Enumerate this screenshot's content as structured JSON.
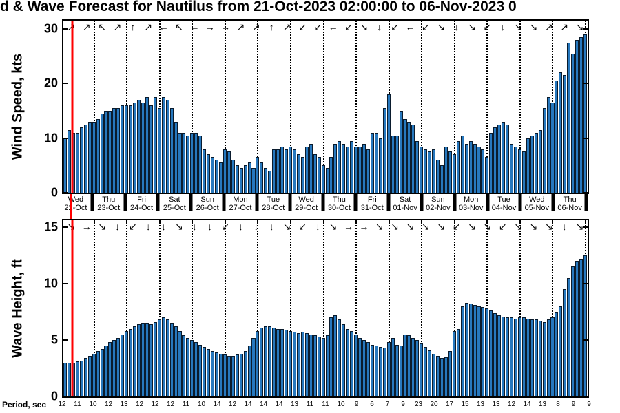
{
  "title": "d & Wave Forecast for Nautilus from 21-Oct-2023 02:00:00 to 06-Nov-2023 0",
  "colors": {
    "bar_fill": "#2778BE",
    "bar_edge": "#0A1C2E",
    "now_line": "#FF0000"
  },
  "x_axis": {
    "total_hours": 384,
    "now_hour": 6.5,
    "day_tick_hours": [
      22,
      46,
      70,
      94,
      118,
      142,
      166,
      190,
      214,
      238,
      262,
      286,
      310,
      334,
      358,
      382
    ],
    "day_labels": [
      {
        "day": "Wed",
        "date": "22-Oct"
      },
      {
        "day": "Thu",
        "date": "23-Oct"
      },
      {
        "day": "Fri",
        "date": "24-Oct"
      },
      {
        "day": "Sat",
        "date": "25-Oct"
      },
      {
        "day": "Sun",
        "date": "26-Oct"
      },
      {
        "day": "Mon",
        "date": "27-Oct"
      },
      {
        "day": "Tue",
        "date": "28-Oct"
      },
      {
        "day": "Wed",
        "date": "29-Oct"
      },
      {
        "day": "Thu",
        "date": "30-Oct"
      },
      {
        "day": "Fri",
        "date": "31-Oct"
      },
      {
        "day": "Sat",
        "date": "01-Nov"
      },
      {
        "day": "Sun",
        "date": "02-Nov"
      },
      {
        "day": "Mon",
        "date": "03-Nov"
      },
      {
        "day": "Tue",
        "date": "04-Nov"
      },
      {
        "day": "Wed",
        "date": "05-Nov"
      },
      {
        "day": "Thu",
        "date": "06-Nov"
      }
    ]
  },
  "chart_data": [
    {
      "type": "bar",
      "name": "wind-speed",
      "ylabel": "Wind Speed, kts",
      "ylim": [
        0,
        31.5
      ],
      "yticks": [
        0,
        10,
        20,
        30
      ],
      "step_hours": 3,
      "values": [
        10,
        11.5,
        11,
        11,
        12,
        12.5,
        13,
        13,
        13.5,
        14.5,
        15,
        15,
        15.5,
        15.5,
        16,
        16,
        16,
        16.5,
        17,
        16.5,
        17.5,
        16,
        17.5,
        15.5,
        17.5,
        17,
        15.5,
        13,
        11,
        11,
        10.5,
        11,
        11,
        10.5,
        8,
        7,
        6.5,
        6,
        5.5,
        8,
        7.5,
        6,
        5,
        4.5,
        5,
        5.5,
        4.5,
        6.5,
        5.5,
        4.5,
        4,
        8,
        8,
        8.5,
        8,
        8.5,
        8,
        7,
        6.5,
        8.5,
        9,
        7,
        6.5,
        5,
        4.5,
        6.5,
        9,
        9.5,
        9,
        8.5,
        9.5,
        8.5,
        8.5,
        9,
        8,
        11,
        11,
        10,
        15.5,
        18,
        10.5,
        10.5,
        15,
        13.5,
        13,
        12.5,
        9.5,
        8.5,
        8,
        7.5,
        8,
        6,
        5,
        8.5,
        7.5,
        7,
        9.5,
        10.5,
        9,
        9.5,
        9,
        8.5,
        8,
        6.5,
        11,
        12,
        12.5,
        13,
        12.5,
        9,
        8.5,
        8,
        7.5,
        10,
        10.5,
        11,
        11.5,
        15.5,
        17.5,
        16.5,
        20.5,
        22,
        21.5,
        27.5,
        25.5,
        28,
        28.5,
        29
      ],
      "arrows": [
        "↗",
        "↗",
        "↖",
        "↗",
        "↑",
        "↗",
        "←",
        "↖",
        "←",
        "→",
        "→",
        "↗",
        "↗",
        "↑",
        "↗",
        "↙",
        "↙",
        "←",
        "↙",
        "↘",
        "↓",
        "↙",
        "←",
        "↙",
        "↘",
        "↓",
        "↘",
        "↙",
        "↓",
        "↘",
        "↘",
        "↗",
        "↗",
        "↘"
      ]
    },
    {
      "type": "bar",
      "name": "wave-height",
      "ylabel": "Wave Height, ft",
      "ylim": [
        0,
        15.6
      ],
      "yticks": [
        0,
        5,
        10,
        15
      ],
      "step_hours": 3,
      "values": [
        3,
        3,
        3,
        3.1,
        3.2,
        3.4,
        3.6,
        3.8,
        4,
        4.2,
        4.5,
        4.8,
        5,
        5.2,
        5.5,
        5.8,
        6,
        6.2,
        6.4,
        6.5,
        6.5,
        6.4,
        6.6,
        6.8,
        7,
        6.8,
        6.5,
        6.2,
        5.8,
        5.4,
        5.2,
        5,
        4.8,
        4.6,
        4.4,
        4.2,
        4,
        3.9,
        3.8,
        3.7,
        3.6,
        3.6,
        3.7,
        3.8,
        4,
        4.5,
        5.2,
        5.8,
        6.1,
        6.2,
        6.2,
        6.1,
        6,
        6,
        5.9,
        5.8,
        5.7,
        5.6,
        5.7,
        5.6,
        5.5,
        5.4,
        5.3,
        5.2,
        5.4,
        7,
        7.2,
        6.8,
        6.4,
        6,
        5.8,
        5.5,
        5.2,
        5,
        4.8,
        4.6,
        4.5,
        4.4,
        4.3,
        4.8,
        5.2,
        4.6,
        4.5,
        5.5,
        5.4,
        5.2,
        5,
        4.7,
        4.4,
        4.1,
        3.8,
        3.6,
        3.4,
        3.5,
        4,
        5.8,
        6,
        8,
        8.3,
        8.2,
        8.1,
        8,
        7.9,
        7.8,
        7.6,
        7.4,
        7.2,
        7.1,
        7,
        7,
        6.9,
        7,
        7,
        6.9,
        6.8,
        6.8,
        6.7,
        6.6,
        6.8,
        7,
        7.5,
        8,
        9.5,
        10.5,
        11.5,
        12,
        12.2,
        12.5
      ],
      "arrows": [
        "↘",
        "→",
        "↘",
        "↓",
        "↙",
        "↓",
        "↓",
        "↘",
        "↓",
        "↓",
        "↙",
        "↓",
        "↓",
        "↓",
        "↘",
        "↙",
        "↓",
        "↘",
        "→",
        "→",
        "↘",
        "↘",
        "↘",
        "↘",
        "↘",
        "↙",
        "↘",
        "↘",
        "↙",
        "↘",
        "↘",
        "↘",
        "↓",
        "↘"
      ]
    }
  ],
  "period": {
    "label": "Period, sec",
    "values": [
      12,
      11,
      10,
      12,
      13,
      12,
      12,
      12,
      11,
      10,
      14,
      12,
      14,
      14,
      14,
      13,
      11,
      11,
      10,
      9,
      6,
      7,
      9,
      23,
      20,
      17,
      15,
      13,
      13,
      12,
      14,
      13,
      8,
      9,
      9
    ]
  }
}
